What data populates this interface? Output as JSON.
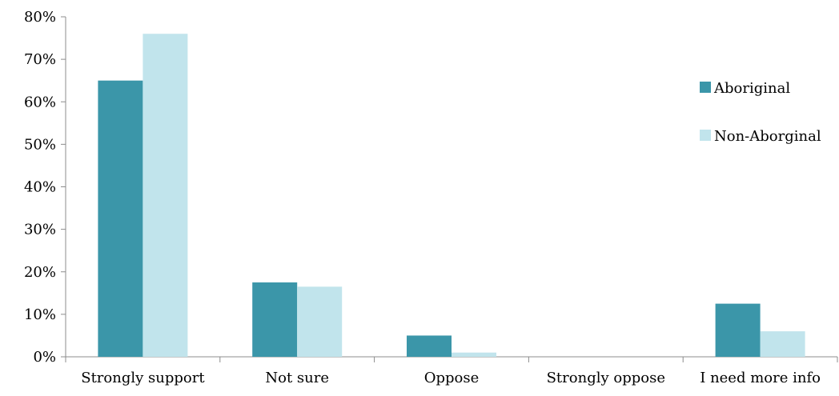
{
  "chart_data": {
    "type": "bar",
    "categories": [
      "Strongly support",
      "Not sure",
      "Oppose",
      "Strongly oppose",
      "I need more info"
    ],
    "series": [
      {
        "name": "Aboriginal",
        "color": "#3b96a9",
        "values": [
          0.65,
          0.175,
          0.05,
          0,
          0.125
        ]
      },
      {
        "name": "Non-Aborginal",
        "color": "#c1e4ec",
        "values": [
          0.76,
          0.165,
          0.01,
          0,
          0.06
        ]
      }
    ],
    "y_ticks": [
      "0%",
      "10%",
      "20%",
      "30%",
      "40%",
      "50%",
      "60%",
      "70%",
      "80%"
    ],
    "ylim": [
      0,
      0.8
    ],
    "y_format": "percent",
    "grid": false,
    "legend_position": "right",
    "title": "",
    "xlabel": "",
    "ylabel": ""
  }
}
